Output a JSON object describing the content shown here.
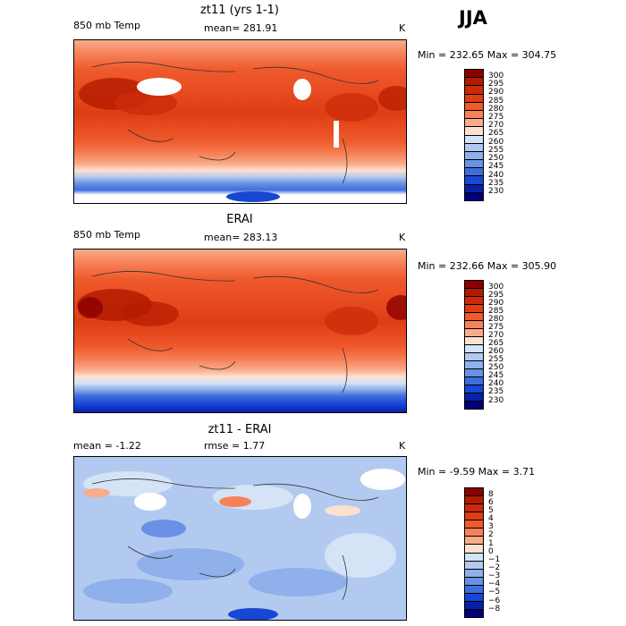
{
  "season": "JJA",
  "panels": [
    {
      "id": "model",
      "title": "zt11 (yrs 1-1)",
      "left_label": "850 mb Temp",
      "center_label": "mean= 281.91",
      "units": "K",
      "range_label": "Min = 232.65 Max = 304.75",
      "colorbar": {
        "levels": [
          "300",
          "295",
          "290",
          "285",
          "280",
          "275",
          "270",
          "265",
          "260",
          "255",
          "250",
          "245",
          "240",
          "235",
          "230"
        ],
        "colors": [
          "#8b0000",
          "#b31b00",
          "#cc2a0a",
          "#df3d14",
          "#ef5a2c",
          "#f7825a",
          "#f9ac8a",
          "#fde0cf",
          "#d5e3f7",
          "#b3caf0",
          "#8fb0ea",
          "#6a91e3",
          "#3f6ddd",
          "#1747d3",
          "#0a1fa8",
          "#00007a"
        ]
      }
    },
    {
      "id": "obs",
      "title": "ERAI",
      "left_label": "850 mb Temp",
      "center_label": "mean= 283.13",
      "units": "K",
      "range_label": "Min = 232.66 Max = 305.90",
      "colorbar": {
        "levels": [
          "300",
          "295",
          "290",
          "285",
          "280",
          "275",
          "270",
          "265",
          "260",
          "255",
          "250",
          "245",
          "240",
          "235",
          "230"
        ],
        "colors": [
          "#8b0000",
          "#b31b00",
          "#cc2a0a",
          "#df3d14",
          "#ef5a2c",
          "#f7825a",
          "#f9ac8a",
          "#fde0cf",
          "#d5e3f7",
          "#b3caf0",
          "#8fb0ea",
          "#6a91e3",
          "#3f6ddd",
          "#1747d3",
          "#0a1fa8",
          "#00007a"
        ]
      }
    },
    {
      "id": "diff",
      "title": "zt11 - ERAI",
      "left_label": "mean =   -1.22",
      "center_label": "rmse =    1.77",
      "units": "K",
      "range_label": "Min =  -9.59 Max =    3.71",
      "colorbar": {
        "levels": [
          "8",
          "6",
          "5",
          "4",
          "3",
          "2",
          "1",
          "0",
          "−1",
          "−2",
          "−3",
          "−4",
          "−5",
          "−6",
          "−8"
        ],
        "colors": [
          "#8b0000",
          "#b31b00",
          "#cc2a0a",
          "#df3d14",
          "#ef5a2c",
          "#f7825a",
          "#f9ac8a",
          "#fde0cf",
          "#d5e3f7",
          "#b3caf0",
          "#8fb0ea",
          "#6a91e3",
          "#3f6ddd",
          "#1747d3",
          "#0a1fa8",
          "#00007a"
        ]
      }
    }
  ]
}
